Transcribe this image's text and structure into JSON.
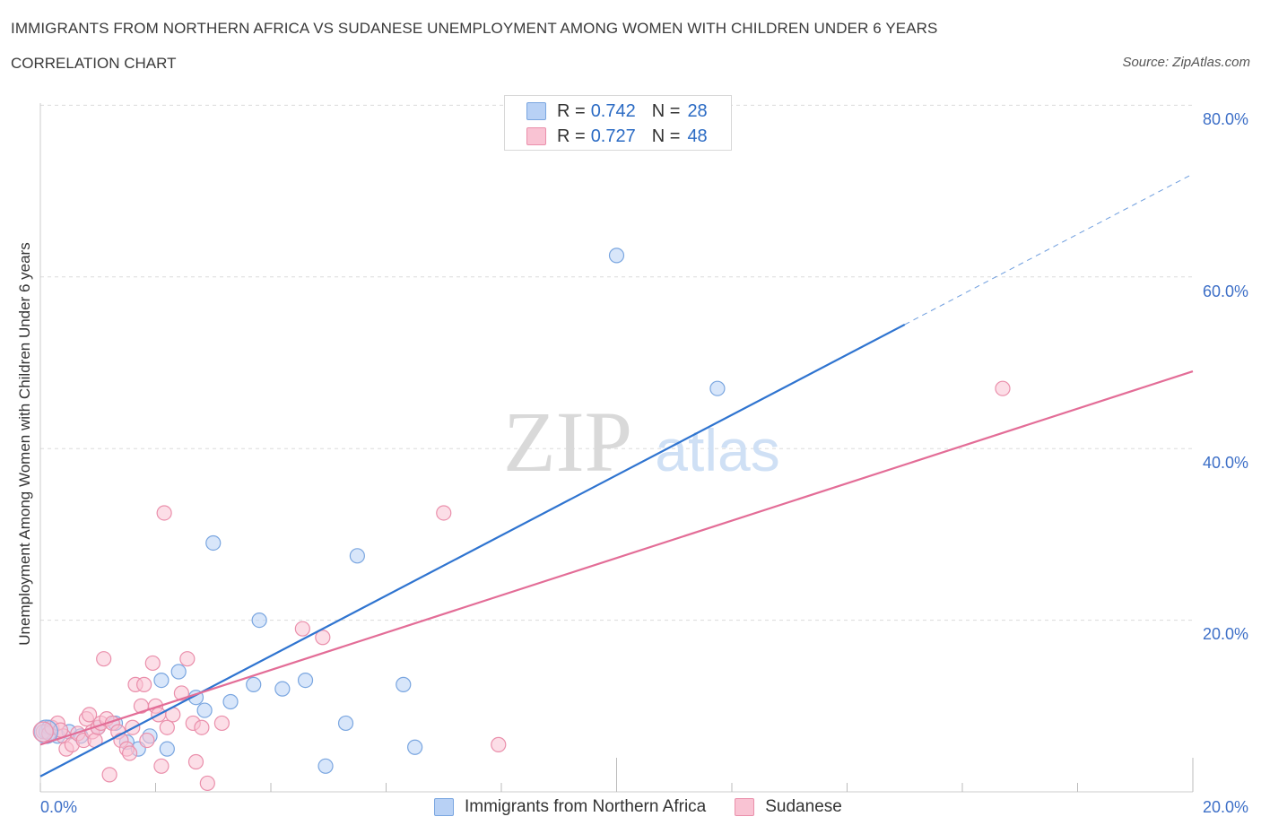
{
  "header": {
    "title": "IMMIGRANTS FROM NORTHERN AFRICA VS SUDANESE UNEMPLOYMENT AMONG WOMEN WITH CHILDREN UNDER 6 YEARS",
    "subtitle": "CORRELATION CHART",
    "source": "Source: ZipAtlas.com"
  },
  "legend": {
    "series1": {
      "r_label": "R =",
      "r_value": "0.742",
      "n_label": "N =",
      "n_value": "28"
    },
    "series2": {
      "r_label": "R =",
      "r_value": "0.727",
      "n_label": "N =",
      "n_value": "48"
    }
  },
  "bottom_legend": {
    "series1": "Immigrants from Northern Africa",
    "series2": "Sudanese"
  },
  "axes": {
    "ylabel": "Unemployment Among Women with Children Under 6 years",
    "x_tick_left": "0.0%",
    "x_tick_right": "20.0%",
    "y_ticks": [
      "80.0%",
      "60.0%",
      "40.0%",
      "20.0%"
    ]
  },
  "watermark": {
    "zip": "ZIP",
    "atlas": "atlas"
  },
  "colors": {
    "blue_fill": "#b8d1f5",
    "blue_stroke": "#7aa6e0",
    "blue_line": "#2f74d0",
    "pink_fill": "#f9c3d3",
    "pink_stroke": "#ea8fab",
    "pink_line": "#e36d97",
    "tick_text": "#3d6fc7"
  },
  "chart_data": {
    "type": "scatter",
    "xlim": [
      0,
      20
    ],
    "ylim": [
      0,
      80
    ],
    "grid": true,
    "series": [
      {
        "name": "Immigrants from Northern Africa",
        "trend": {
          "x0": 0.0,
          "y0": 1.8,
          "x1": 20.0,
          "y1": 72.0,
          "solid_until_x": 15.0
        },
        "points": [
          [
            0.1,
            7.0
          ],
          [
            0.3,
            6.5
          ],
          [
            0.5,
            7.0
          ],
          [
            0.7,
            6.5
          ],
          [
            1.0,
            7.5
          ],
          [
            1.3,
            8.0
          ],
          [
            1.5,
            5.8
          ],
          [
            1.7,
            5.0
          ],
          [
            1.9,
            6.5
          ],
          [
            2.1,
            13.0
          ],
          [
            2.2,
            5.0
          ],
          [
            2.4,
            14.0
          ],
          [
            2.7,
            11.0
          ],
          [
            2.85,
            9.5
          ],
          [
            3.0,
            29.0
          ],
          [
            3.3,
            10.5
          ],
          [
            3.7,
            12.5
          ],
          [
            3.8,
            20.0
          ],
          [
            4.2,
            12.0
          ],
          [
            4.6,
            13.0
          ],
          [
            4.95,
            3.0
          ],
          [
            5.3,
            8.0
          ],
          [
            5.5,
            27.5
          ],
          [
            6.3,
            12.5
          ],
          [
            6.5,
            5.2
          ],
          [
            10.0,
            62.5
          ],
          [
            11.75,
            47.0
          ],
          [
            0.15,
            7.5
          ]
        ]
      },
      {
        "name": "Sudanese",
        "trend": {
          "x0": 0.0,
          "y0": 5.5,
          "x1": 20.0,
          "y1": 49.0
        },
        "points": [
          [
            0.05,
            7.0
          ],
          [
            0.15,
            6.8
          ],
          [
            0.2,
            7.5
          ],
          [
            0.3,
            8.0
          ],
          [
            0.4,
            6.5
          ],
          [
            0.45,
            5.0
          ],
          [
            0.55,
            5.5
          ],
          [
            0.65,
            6.8
          ],
          [
            0.75,
            6.0
          ],
          [
            0.8,
            8.5
          ],
          [
            0.85,
            9.0
          ],
          [
            0.9,
            7.0
          ],
          [
            0.95,
            6.0
          ],
          [
            1.0,
            7.5
          ],
          [
            1.05,
            8.0
          ],
          [
            1.1,
            15.5
          ],
          [
            1.15,
            8.5
          ],
          [
            1.2,
            2.0
          ],
          [
            1.25,
            8.0
          ],
          [
            1.35,
            7.0
          ],
          [
            1.4,
            6.0
          ],
          [
            1.5,
            5.0
          ],
          [
            1.55,
            4.5
          ],
          [
            1.6,
            7.5
          ],
          [
            1.65,
            12.5
          ],
          [
            1.75,
            10.0
          ],
          [
            1.8,
            12.5
          ],
          [
            1.85,
            6.0
          ],
          [
            2.0,
            10.0
          ],
          [
            2.05,
            9.0
          ],
          [
            2.1,
            3.0
          ],
          [
            2.15,
            32.5
          ],
          [
            2.2,
            7.5
          ],
          [
            2.3,
            9.0
          ],
          [
            2.45,
            11.5
          ],
          [
            2.55,
            15.5
          ],
          [
            2.65,
            8.0
          ],
          [
            2.7,
            3.5
          ],
          [
            2.8,
            7.5
          ],
          [
            2.9,
            1.0
          ],
          [
            3.15,
            8.0
          ],
          [
            1.95,
            15.0
          ],
          [
            4.55,
            19.0
          ],
          [
            4.9,
            18.0
          ],
          [
            7.0,
            32.5
          ],
          [
            7.95,
            5.5
          ],
          [
            16.7,
            47.0
          ],
          [
            0.35,
            7.2
          ]
        ]
      }
    ]
  }
}
